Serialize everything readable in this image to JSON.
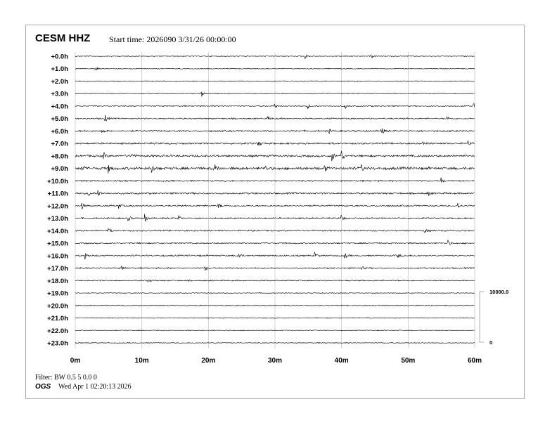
{
  "header": {
    "station": "CESM HHZ",
    "start_time": "Start time: 2026090  3/31/26 00:00:00"
  },
  "footer": {
    "filter": "Filter: BW 0.5 5 0.0 0",
    "org": "OGS",
    "printed": "Wed Apr  1 02:20:13 2026"
  },
  "chart_data": {
    "type": "line",
    "title": "CESM HHZ",
    "row_labels": [
      "+0.0h",
      "+1.0h",
      "+2.0h",
      "+3.0h",
      "+4.0h",
      "+5.0h",
      "+6.0h",
      "+7.0h",
      "+8.0h",
      "+9.0h",
      "+10.0h",
      "+11.0h",
      "+12.0h",
      "+13.0h",
      "+14.0h",
      "+15.0h",
      "+16.0h",
      "+17.0h",
      "+18.0h",
      "+19.0h",
      "+20.0h",
      "+21.0h",
      "+22.0h",
      "+23.0h"
    ],
    "x_tick_labels": [
      "0m",
      "10m",
      "20m",
      "30m",
      "40m",
      "50m",
      "60m"
    ],
    "xlim": [
      0,
      60
    ],
    "grid": true,
    "trace_color": "#000000",
    "grid_color": "#c8c8c8",
    "scale_bar": {
      "top_label": "10000.0",
      "bottom_label": "0"
    },
    "row_noise_level": [
      0.5,
      0.5,
      0.5,
      0.5,
      0.7,
      0.8,
      1.0,
      1.0,
      1.3,
      1.6,
      0.9,
      1.0,
      0.9,
      0.9,
      0.8,
      0.8,
      0.9,
      0.8,
      0.7,
      0.5,
      0.5,
      0.5,
      0.5,
      0.5
    ],
    "events": [
      {
        "row": 0,
        "minute": 34.5,
        "amp": 4
      },
      {
        "row": 0,
        "minute": 44.5,
        "amp": 3
      },
      {
        "row": 1,
        "minute": 3,
        "amp": 4
      },
      {
        "row": 2,
        "minute": 42,
        "amp": 3
      },
      {
        "row": 3,
        "minute": 19,
        "amp": 4
      },
      {
        "row": 4,
        "minute": 30,
        "amp": 3
      },
      {
        "row": 4,
        "minute": 35,
        "amp": 3
      },
      {
        "row": 4,
        "minute": 40.5,
        "amp": 4
      },
      {
        "row": 4,
        "minute": 59.8,
        "amp": 5
      },
      {
        "row": 5,
        "minute": 4.5,
        "amp": 7
      },
      {
        "row": 5,
        "minute": 29,
        "amp": 3
      },
      {
        "row": 5,
        "minute": 55.8,
        "amp": 3
      },
      {
        "row": 6,
        "minute": 4,
        "amp": 4
      },
      {
        "row": 6,
        "minute": 38,
        "amp": 4
      },
      {
        "row": 6,
        "minute": 46,
        "amp": 6
      },
      {
        "row": 7,
        "minute": 27.5,
        "amp": 5
      },
      {
        "row": 7,
        "minute": 52,
        "amp": 3
      },
      {
        "row": 7,
        "minute": 59,
        "amp": 4
      },
      {
        "row": 8,
        "minute": 4.2,
        "amp": 6
      },
      {
        "row": 8,
        "minute": 8.5,
        "amp": 4
      },
      {
        "row": 8,
        "minute": 38.5,
        "amp": 10
      },
      {
        "row": 8,
        "minute": 40,
        "amp": 8
      },
      {
        "row": 9,
        "minute": 1,
        "amp": 5
      },
      {
        "row": 9,
        "minute": 5,
        "amp": 6
      },
      {
        "row": 9,
        "minute": 11.5,
        "amp": 6
      },
      {
        "row": 9,
        "minute": 21,
        "amp": 6
      },
      {
        "row": 9,
        "minute": 28.5,
        "amp": 4
      },
      {
        "row": 9,
        "minute": 37.5,
        "amp": 4
      },
      {
        "row": 9,
        "minute": 43,
        "amp": 4
      },
      {
        "row": 10,
        "minute": 55,
        "amp": 4
      },
      {
        "row": 11,
        "minute": 2,
        "amp": 4
      },
      {
        "row": 11,
        "minute": 3.5,
        "amp": 4
      },
      {
        "row": 11,
        "minute": 53,
        "amp": 4
      },
      {
        "row": 12,
        "minute": 1,
        "amp": 5
      },
      {
        "row": 12,
        "minute": 6.5,
        "amp": 4
      },
      {
        "row": 12,
        "minute": 21.5,
        "amp": 4
      },
      {
        "row": 12,
        "minute": 57.5,
        "amp": 4
      },
      {
        "row": 13,
        "minute": 8,
        "amp": 4
      },
      {
        "row": 13,
        "minute": 10.5,
        "amp": 5
      },
      {
        "row": 13,
        "minute": 15.5,
        "amp": 5
      },
      {
        "row": 13,
        "minute": 40,
        "amp": 5
      },
      {
        "row": 14,
        "minute": 5,
        "amp": 4
      },
      {
        "row": 14,
        "minute": 52.5,
        "amp": 4
      },
      {
        "row": 15,
        "minute": 56,
        "amp": 4
      },
      {
        "row": 16,
        "minute": 1.5,
        "amp": 5
      },
      {
        "row": 16,
        "minute": 24.5,
        "amp": 6
      },
      {
        "row": 16,
        "minute": 36,
        "amp": 4
      },
      {
        "row": 16,
        "minute": 40.5,
        "amp": 4
      },
      {
        "row": 16,
        "minute": 48.5,
        "amp": 3
      },
      {
        "row": 17,
        "minute": 7,
        "amp": 3
      },
      {
        "row": 17,
        "minute": 19.5,
        "amp": 4
      },
      {
        "row": 17,
        "minute": 43,
        "amp": 3
      },
      {
        "row": 18,
        "minute": 11,
        "amp": 3
      }
    ]
  }
}
